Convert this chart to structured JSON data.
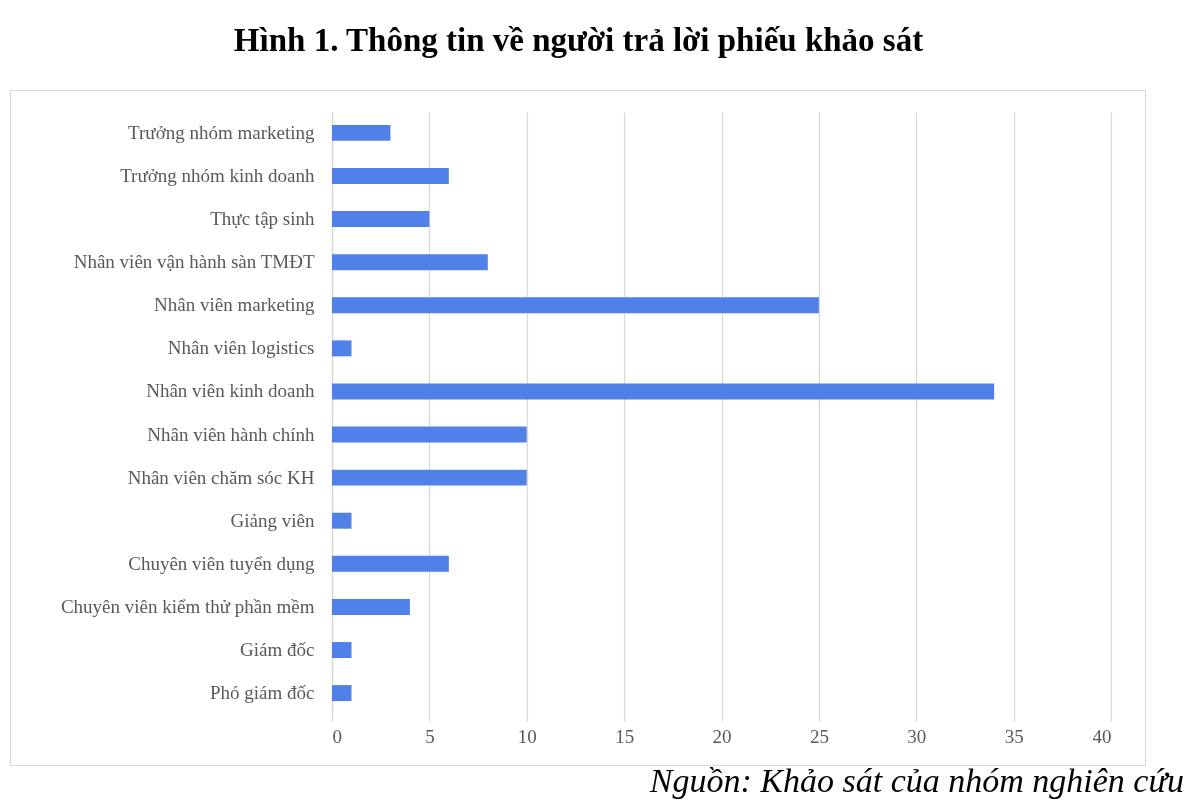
{
  "chart_data": {
    "type": "bar",
    "orientation": "horizontal",
    "title": "Hình 1. Thông tin về người trả lời phiếu khảo sát",
    "annotations": [
      "Nguồn: Khảo sát của nhóm nghiên cứu"
    ],
    "categories": [
      "Trưởng nhóm marketing",
      "Trưởng nhóm kinh doanh",
      "Thực tập sinh",
      "Nhân viên vận hành sàn TMĐT",
      "Nhân viên marketing",
      "Nhân viên logistics",
      "Nhân viên kinh doanh",
      "Nhân viên hành chính",
      "Nhân viên chăm sóc KH",
      "Giảng viên",
      "Chuyên viên tuyển dụng",
      "Chuyên viên kiểm thử phần mềm",
      "Giám đốc",
      "Phó giám đốc"
    ],
    "values": [
      3,
      6,
      5,
      8,
      25,
      1,
      34,
      10,
      10,
      1,
      6,
      4,
      1,
      1
    ],
    "color": "#4f81e9",
    "xlim": [
      0,
      40
    ],
    "xticks": [
      0,
      5,
      10,
      15,
      20,
      25,
      30,
      35,
      40
    ],
    "grid": "x"
  }
}
